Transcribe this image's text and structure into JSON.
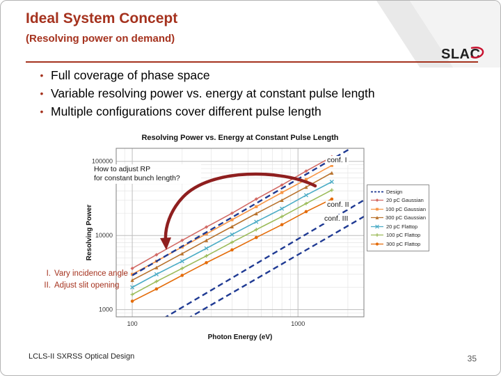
{
  "slide": {
    "title": "Ideal System Concept",
    "subtitle": "(Resolving power on demand)",
    "logo_text": "SLAC",
    "accent_color": "#a5321e",
    "arrow_color": "#8f1f1f",
    "bullet_char": "•",
    "footer_left": "LCLS-II SXRSS Optical Design",
    "page_number": "35"
  },
  "bullets": [
    "Full coverage of phase space",
    "Variable resolving power vs. energy at constant pulse length",
    "Multiple configurations cover different pulse length"
  ],
  "rp_question": {
    "line1": "How to adjust RP",
    "line2": "for constant bunch length?"
  },
  "notes": [
    {
      "num": "I.",
      "text": "Vary incidence angle"
    },
    {
      "num": "II.",
      "text": "Adjust slit opening"
    }
  ],
  "chart_data": {
    "type": "line",
    "title": "Resolving Power vs. Energy at Constant Pulse Length",
    "xlabel": "Photon Energy (eV)",
    "ylabel": "Resolving Power",
    "x_scale": "log",
    "y_scale": "log",
    "xlim": [
      80,
      2500
    ],
    "ylim": [
      800,
      150000
    ],
    "x_ticks": [
      100,
      1000
    ],
    "y_ticks": [
      1000,
      10000,
      100000
    ],
    "grid": true,
    "legend_position": "right",
    "x": [
      100,
      140,
      200,
      280,
      400,
      560,
      800,
      1120,
      1600
    ],
    "series": [
      {
        "name": "20 pC Gaussian",
        "color": "#d26a65",
        "marker": "diamond",
        "values": [
          3600,
          5500,
          8600,
          13000,
          20000,
          31000,
          48000,
          74000,
          115000
        ]
      },
      {
        "name": "100 pC Gaussian",
        "color": "#f79646",
        "marker": "square",
        "values": [
          3000,
          4500,
          7000,
          10500,
          16300,
          24500,
          38000,
          57000,
          88000
        ]
      },
      {
        "name": "300 pC Gaussian",
        "color": "#b8722c",
        "marker": "triangle",
        "values": [
          2500,
          3700,
          5700,
          8600,
          13200,
          19800,
          30000,
          45000,
          70000
        ]
      },
      {
        "name": "20 pC Flattop",
        "color": "#4bacc6",
        "marker": "x",
        "values": [
          2000,
          3000,
          4500,
          6700,
          10300,
          15300,
          23000,
          35000,
          53000
        ]
      },
      {
        "name": "100 pC Flattop",
        "color": "#9bbb59",
        "marker": "plus",
        "values": [
          1600,
          2400,
          3600,
          5300,
          8100,
          12000,
          18000,
          27000,
          41000
        ]
      },
      {
        "name": "300 pC Flattop",
        "color": "#e46c0a",
        "marker": "circle",
        "values": [
          1300,
          1900,
          2900,
          4300,
          6400,
          9400,
          14000,
          21000,
          31000
        ]
      }
    ],
    "design": {
      "legend_label": "Design",
      "color": "#1f3a93",
      "dashed": true,
      "lines": [
        {
          "label": "conf. I",
          "x": [
            100,
            2500
          ],
          "y": [
            2900,
            190000
          ]
        },
        {
          "label": "conf. II",
          "x": [
            100,
            2500
          ],
          "y": [
            430,
            30000
          ]
        },
        {
          "label": "conf. III",
          "x": [
            100,
            2500
          ],
          "y": [
            280,
            18000
          ]
        }
      ]
    }
  }
}
